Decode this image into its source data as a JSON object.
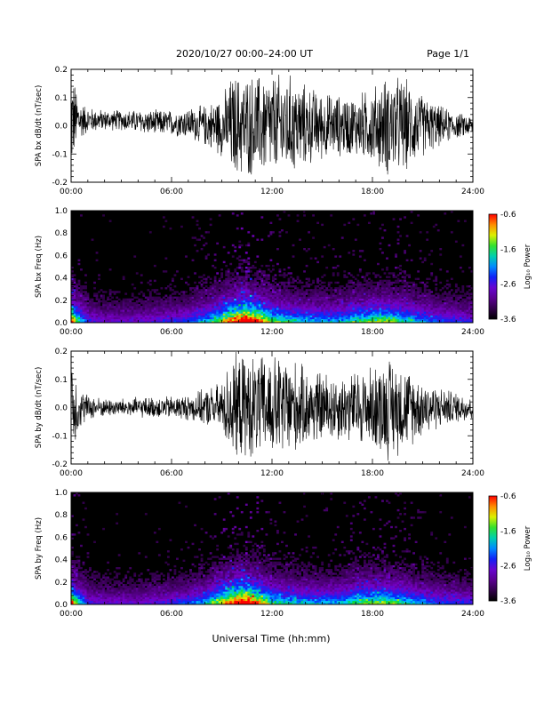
{
  "header": {
    "title": "2020/10/27  00:00–24:00 UT",
    "page": "Page 1/1"
  },
  "xlabel": "Universal Time (hh:mm)",
  "chart_data": [
    {
      "type": "line",
      "ylabel": "SPA bx dB/dt (nT/sec)",
      "xlim": [
        "00:00",
        "24:00"
      ],
      "x_ticks": [
        "00:00",
        "06:00",
        "12:00",
        "18:00",
        "24:00"
      ],
      "ylim": [
        -0.2,
        0.2
      ],
      "y_ticks": [
        "-0.2",
        "-0.1",
        "0.0",
        "0.1",
        "0.2"
      ],
      "envelope": {
        "hour": [
          0,
          0.5,
          1,
          2,
          3,
          4,
          5,
          6,
          7,
          8,
          9,
          9.3,
          9.6,
          10,
          11,
          12,
          13,
          14,
          15,
          16,
          17,
          18,
          19,
          20,
          21,
          22,
          23,
          24
        ],
        "amplitude": [
          0.2,
          0.08,
          0.05,
          0.04,
          0.04,
          0.045,
          0.05,
          0.05,
          0.06,
          0.08,
          0.12,
          0.15,
          0.2,
          0.2,
          0.2,
          0.2,
          0.2,
          0.16,
          0.13,
          0.12,
          0.12,
          0.15,
          0.2,
          0.18,
          0.12,
          0.08,
          0.05,
          0.04
        ],
        "offset": [
          0.02,
          0.02,
          0.02,
          0.02,
          0.02,
          0.015,
          0.01,
          0.01,
          0.01,
          0.0,
          0.0,
          0.0,
          0.0,
          0.0,
          0.0,
          0.0,
          0.0,
          0.0,
          0.0,
          0.0,
          0.0,
          0.0,
          0.0,
          0.0,
          0.0,
          0.0,
          0.0,
          0.0
        ]
      }
    },
    {
      "type": "heatmap",
      "ylabel": "SPA bx Freq (Hz)",
      "colorbar_label": "Log₁₀ Power",
      "colorbar_ticks": [
        "-0.6",
        "-1.6",
        "-2.6",
        "-3.6"
      ],
      "zlim": [
        -3.6,
        -0.6
      ],
      "xlim": [
        "00:00",
        "24:00"
      ],
      "x_ticks": [
        "00:00",
        "06:00",
        "12:00",
        "18:00",
        "24:00"
      ],
      "ylim": [
        0.0,
        1.0
      ],
      "y_ticks": [
        "0.0",
        "0.2",
        "0.4",
        "0.6",
        "0.8",
        "1.0"
      ],
      "activity": {
        "hour": [
          0,
          0.3,
          1,
          2,
          4,
          6,
          7,
          8,
          9,
          10,
          10.5,
          11,
          12,
          14,
          16,
          17,
          18,
          19,
          20,
          22,
          24
        ],
        "level": [
          0.9,
          0.6,
          0.3,
          0.25,
          0.25,
          0.3,
          0.35,
          0.45,
          0.65,
          0.9,
          1.0,
          0.85,
          0.6,
          0.45,
          0.45,
          0.55,
          0.6,
          0.6,
          0.5,
          0.35,
          0.3
        ]
      }
    },
    {
      "type": "line",
      "ylabel": "SPA by dB/dt (nT/sec)",
      "xlim": [
        "00:00",
        "24:00"
      ],
      "x_ticks": [
        "00:00",
        "06:00",
        "12:00",
        "18:00",
        "24:00"
      ],
      "ylim": [
        -0.2,
        0.2
      ],
      "y_ticks": [
        "-0.2",
        "-0.1",
        "0.0",
        "0.1",
        "0.2"
      ],
      "envelope": {
        "hour": [
          0,
          0.5,
          1,
          2,
          3,
          4,
          5,
          6,
          7,
          8,
          9,
          9.3,
          9.6,
          10,
          11,
          12,
          13,
          14,
          15,
          16,
          17,
          18,
          19,
          20,
          21,
          22,
          23,
          24
        ],
        "amplitude": [
          0.2,
          0.08,
          0.05,
          0.035,
          0.035,
          0.04,
          0.04,
          0.045,
          0.05,
          0.07,
          0.1,
          0.15,
          0.2,
          0.2,
          0.2,
          0.2,
          0.2,
          0.15,
          0.14,
          0.13,
          0.14,
          0.16,
          0.2,
          0.16,
          0.11,
          0.08,
          0.06,
          0.05
        ],
        "offset": [
          0.0,
          0.0,
          0.0,
          0.0,
          0.0,
          0.0,
          0.0,
          0.0,
          0.0,
          0.0,
          0.0,
          0.0,
          0.0,
          0.0,
          0.0,
          0.0,
          0.0,
          0.0,
          0.0,
          0.0,
          0.0,
          0.0,
          0.0,
          0.0,
          0.0,
          0.0,
          0.0,
          0.0
        ]
      }
    },
    {
      "type": "heatmap",
      "ylabel": "SPA by Freq (Hz)",
      "colorbar_label": "Log₁₀ Power",
      "colorbar_ticks": [
        "-0.6",
        "-1.6",
        "-2.6",
        "-3.6"
      ],
      "zlim": [
        -3.6,
        -0.6
      ],
      "xlim": [
        "00:00",
        "24:00"
      ],
      "x_ticks": [
        "00:00",
        "06:00",
        "12:00",
        "18:00",
        "24:00"
      ],
      "ylim": [
        0.0,
        1.0
      ],
      "y_ticks": [
        "0.0",
        "0.2",
        "0.4",
        "0.6",
        "0.8",
        "1.0"
      ],
      "activity": {
        "hour": [
          0,
          0.3,
          1,
          2,
          4,
          6,
          7,
          8,
          9,
          10,
          10.5,
          11,
          12,
          14,
          16,
          17,
          18,
          19,
          20,
          22,
          24
        ],
        "level": [
          0.9,
          0.6,
          0.3,
          0.25,
          0.25,
          0.3,
          0.35,
          0.45,
          0.7,
          0.95,
          1.0,
          0.85,
          0.55,
          0.45,
          0.45,
          0.55,
          0.6,
          0.6,
          0.5,
          0.35,
          0.3
        ]
      }
    }
  ]
}
